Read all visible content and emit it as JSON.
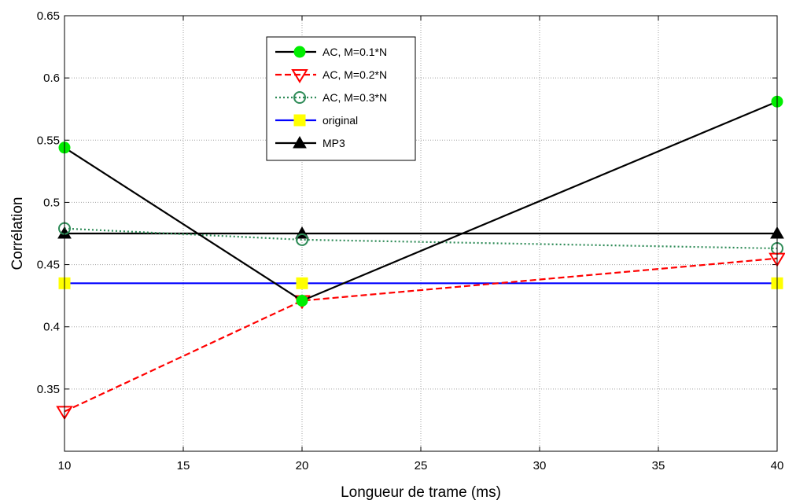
{
  "chart_data": {
    "type": "line",
    "xlabel": "Longueur de trame (ms)",
    "ylabel": "Corrélation",
    "xlim": [
      10,
      40
    ],
    "ylim": [
      0.3,
      0.65
    ],
    "xticks": [
      "10",
      "15",
      "20",
      "25",
      "30",
      "35",
      "40"
    ],
    "yticks": [
      "0.35",
      "0.4",
      "0.45",
      "0.5",
      "0.55",
      "0.6",
      "0.65"
    ],
    "grid": true,
    "legend_position": "top-center",
    "x": [
      10,
      20,
      40
    ],
    "series": [
      {
        "name": "AC, M=0.1*N",
        "values": [
          0.544,
          0.421,
          0.581
        ],
        "color": "#000000",
        "line": "solid",
        "marker": "circle-filled",
        "marker_color": "#00ee00"
      },
      {
        "name": "AC, M=0.2*N",
        "values": [
          0.332,
          0.421,
          0.455
        ],
        "color": "#ff0000",
        "line": "dashed",
        "marker": "triangle-down-open",
        "marker_color": "#ff0000"
      },
      {
        "name": "AC, M=0.3*N",
        "values": [
          0.479,
          0.47,
          0.463
        ],
        "color": "#2e8b57",
        "line": "dotted",
        "marker": "circle-open",
        "marker_color": "#2e8b57"
      },
      {
        "name": "original",
        "values": [
          0.435,
          0.435,
          0.435
        ],
        "color": "#0000ff",
        "line": "solid",
        "marker": "square-filled",
        "marker_color": "#ffff00"
      },
      {
        "name": "MP3",
        "values": [
          0.475,
          0.475,
          0.475
        ],
        "color": "#000000",
        "line": "solid",
        "marker": "triangle-up-filled",
        "marker_color": "#000000"
      }
    ]
  }
}
